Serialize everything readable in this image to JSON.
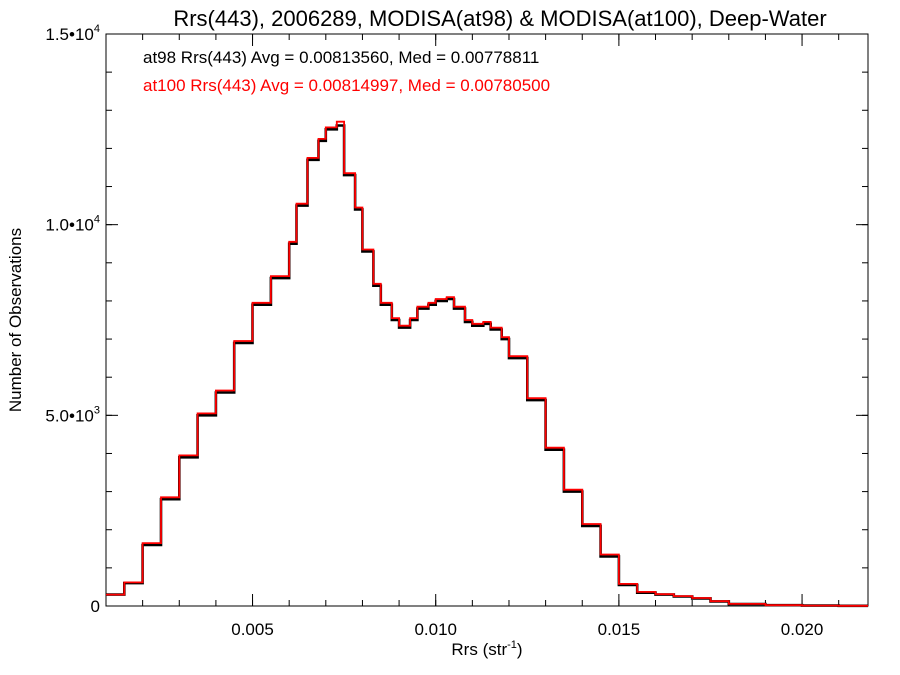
{
  "chart_data": {
    "type": "line",
    "title": "Rrs(443), 2006289, MODISA(at98) & MODISA(at100), Deep-Water",
    "xlabel": "Rrs (str",
    "xlabel_sup": "-1",
    "xlabel_end": ")",
    "ylabel": "Number of Observations",
    "xlim": [
      0.001,
      0.0218
    ],
    "ylim": [
      0,
      15000
    ],
    "x_ticks": [
      {
        "value": 0.005,
        "label": "0.005"
      },
      {
        "value": 0.01,
        "label": "0.010"
      },
      {
        "value": 0.015,
        "label": "0.015"
      },
      {
        "value": 0.02,
        "label": "0.020"
      }
    ],
    "y_ticks": [
      {
        "value": 0,
        "label": "0",
        "sup": ""
      },
      {
        "value": 5000,
        "label": "5.0•10",
        "sup": "3"
      },
      {
        "value": 10000,
        "label": "1.0•10",
        "sup": "4"
      },
      {
        "value": 15000,
        "label": "1.5•10",
        "sup": "4"
      }
    ],
    "grid": false,
    "series": [
      {
        "name": "at98",
        "color": "#000000",
        "stats": "at98 Rrs(443) Avg = 0.00813560, Med = 0.00778811",
        "x": [
          0.001,
          0.0015,
          0.002,
          0.0025,
          0.003,
          0.0035,
          0.004,
          0.0045,
          0.005,
          0.0055,
          0.006,
          0.0062,
          0.0065,
          0.0068,
          0.007,
          0.0073,
          0.0075,
          0.0078,
          0.008,
          0.0083,
          0.0085,
          0.0088,
          0.009,
          0.0093,
          0.0095,
          0.0098,
          0.01,
          0.0103,
          0.0105,
          0.0108,
          0.011,
          0.0113,
          0.0115,
          0.0118,
          0.012,
          0.0125,
          0.013,
          0.0135,
          0.014,
          0.0145,
          0.015,
          0.0155,
          0.016,
          0.0165,
          0.017,
          0.0175,
          0.018,
          0.019,
          0.02,
          0.021,
          0.0218
        ],
        "y": [
          300,
          600,
          1600,
          2800,
          3900,
          5000,
          5600,
          6900,
          7900,
          8600,
          9500,
          10500,
          11700,
          12200,
          12500,
          12600,
          11300,
          10400,
          9300,
          8400,
          7900,
          7500,
          7300,
          7500,
          7800,
          7900,
          8000,
          8050,
          7800,
          7450,
          7350,
          7400,
          7250,
          7000,
          6500,
          5400,
          4100,
          3000,
          2100,
          1300,
          550,
          350,
          300,
          250,
          200,
          120,
          50,
          20,
          10,
          5,
          5
        ]
      },
      {
        "name": "at100",
        "color": "#ff0000",
        "stats": "at100 Rrs(443) Avg = 0.00814997, Med = 0.00780500",
        "x": [
          0.001,
          0.0015,
          0.002,
          0.0025,
          0.003,
          0.0035,
          0.004,
          0.0045,
          0.005,
          0.0055,
          0.006,
          0.0062,
          0.0065,
          0.0068,
          0.007,
          0.0073,
          0.0075,
          0.0078,
          0.008,
          0.0083,
          0.0085,
          0.0088,
          0.009,
          0.0093,
          0.0095,
          0.0098,
          0.01,
          0.0103,
          0.0105,
          0.0108,
          0.011,
          0.0113,
          0.0115,
          0.0118,
          0.012,
          0.0125,
          0.013,
          0.0135,
          0.014,
          0.0145,
          0.015,
          0.0155,
          0.016,
          0.0165,
          0.017,
          0.0175,
          0.018,
          0.019,
          0.02,
          0.021,
          0.0218
        ],
        "y": [
          300,
          620,
          1650,
          2850,
          3950,
          5050,
          5650,
          6950,
          7950,
          8650,
          9550,
          10550,
          11750,
          12250,
          12550,
          12700,
          11350,
          10450,
          9350,
          8450,
          7950,
          7550,
          7350,
          7550,
          7850,
          7950,
          8050,
          8100,
          7850,
          7500,
          7400,
          7450,
          7300,
          7050,
          6550,
          5450,
          4150,
          3050,
          2150,
          1350,
          580,
          370,
          310,
          260,
          210,
          125,
          55,
          22,
          10,
          5,
          5
        ]
      }
    ]
  }
}
